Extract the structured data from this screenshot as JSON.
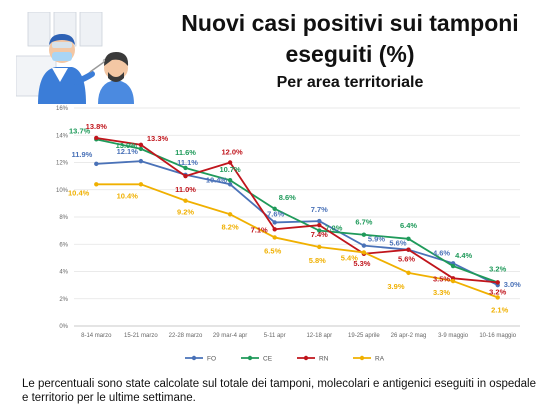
{
  "title_line1": "Nuovi casi positivi sui tamponi",
  "title_line2": "eseguiti (%)",
  "subtitle": "Per area territoriale",
  "footnote": "Le percentuali sono state calcolate sul totale dei tamponi, molecolari e antigenici eseguiti in ospedale e territorio per le ultime settimane.",
  "illustration_icon": "swab-test-illustration-icon",
  "chart_data": {
    "type": "line",
    "categories": [
      "8-14 marzo",
      "15-21 marzo",
      "22-28 marzo",
      "29 mar-4 apr",
      "5-11 apr",
      "12-18 apr",
      "19-25 aprile",
      "26 apr-2 mag",
      "3-9 maggio",
      "10-16 maggio"
    ],
    "ylim": [
      0,
      16
    ],
    "yticks": [
      "0%",
      "2%",
      "4%",
      "6%",
      "8%",
      "10%",
      "12%",
      "14%",
      "16%"
    ],
    "ytick_values": [
      0,
      2,
      4,
      6,
      8,
      10,
      12,
      14,
      16
    ],
    "grid": true,
    "legend_position": "bottom",
    "series": [
      {
        "name": "FO",
        "color": "#4a72b8",
        "values": [
          11.9,
          12.1,
          11.1,
          10.4,
          7.6,
          7.7,
          5.9,
          5.6,
          4.6,
          3.0
        ],
        "labels": [
          "11.9%",
          "12.1%",
          "11.1%",
          "10.4%",
          "7.6%",
          "7.7%",
          "5.9%",
          "5.6%",
          "4.6%",
          "3.0%"
        ]
      },
      {
        "name": "CE",
        "color": "#1f9a5a",
        "values": [
          13.7,
          13.0,
          11.6,
          10.7,
          8.6,
          7.0,
          6.7,
          6.4,
          4.4,
          3.2
        ],
        "labels": [
          "13.7%",
          "13.0%",
          "11.6%",
          "10.7%",
          "8.6%",
          "7.0%",
          "6.7%",
          "6.4%",
          "4.4%",
          "3.2%"
        ]
      },
      {
        "name": "RN",
        "color": "#c0151c",
        "values": [
          13.8,
          13.3,
          11.0,
          12.0,
          7.1,
          7.4,
          5.3,
          5.6,
          3.5,
          3.2
        ],
        "labels": [
          "13.8%",
          "13.3%",
          "11.0%",
          "12.0%",
          "7.1%",
          "7.4%",
          "5.3%",
          "5.6%",
          "3.5%",
          "3.2%"
        ]
      },
      {
        "name": "RA",
        "color": "#f0b000",
        "values": [
          10.4,
          10.4,
          9.2,
          8.2,
          6.5,
          5.8,
          5.4,
          3.9,
          3.3,
          2.1
        ],
        "labels": [
          "10.4%",
          "10.4%",
          "9.2%",
          "8.2%",
          "6.5%",
          "5.8%",
          "5.4%",
          "3.9%",
          "3.3%",
          "2.1%"
        ]
      }
    ]
  }
}
